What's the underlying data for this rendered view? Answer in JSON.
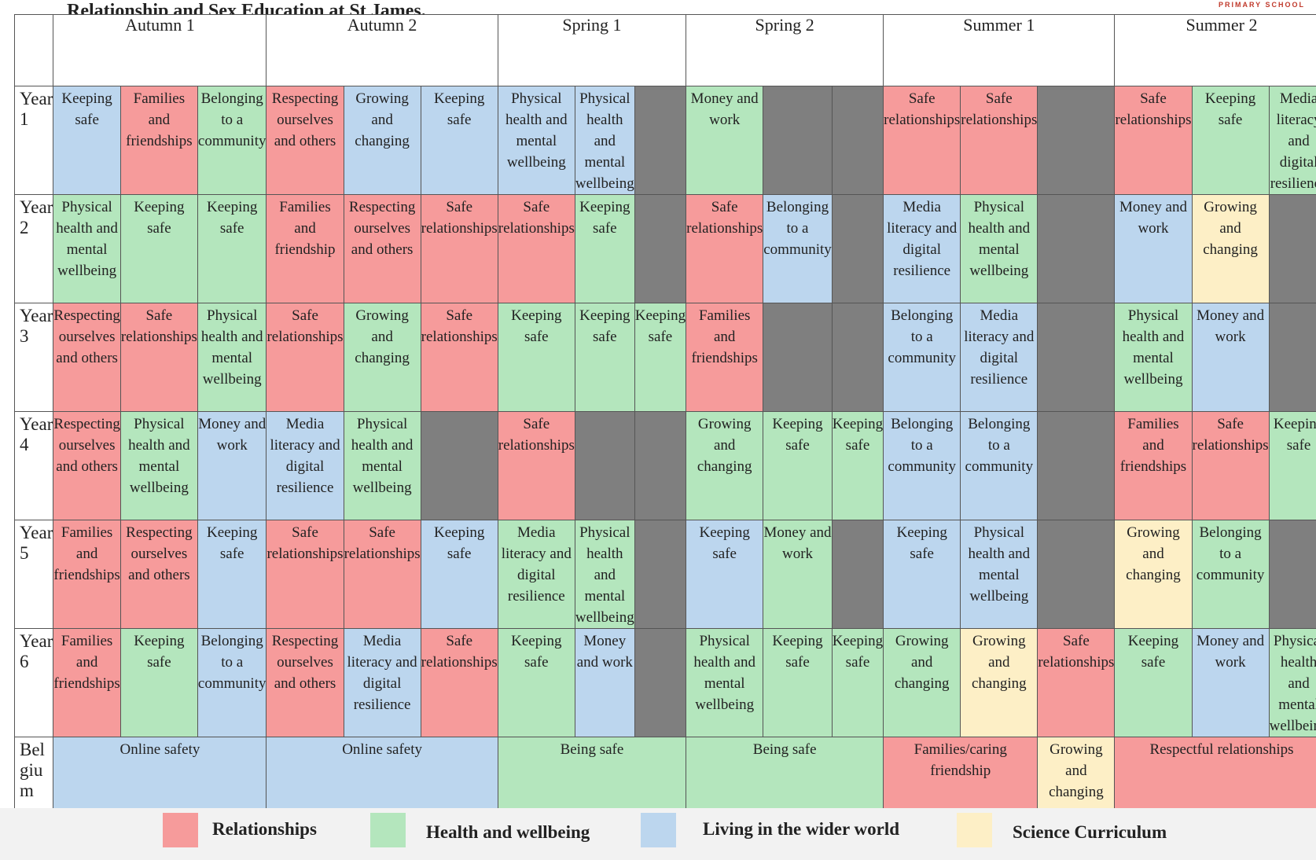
{
  "title": "Relationship and Sex Education at St James.",
  "brand": "PRIMARY SCHOOL",
  "terms": [
    "Autumn 1",
    "Autumn 2",
    "Spring 1",
    "Spring 2",
    "Summer 1",
    "Summer 2"
  ],
  "colors": {
    "relationships": "#f69b9b",
    "health": "#b4e6bd",
    "wider_world": "#bcd6ee",
    "science": "#fdefc6",
    "blank": "#7f7f7f"
  },
  "years": [
    {
      "label": "Year 1",
      "cells": [
        {
          "text": "Keeping safe",
          "cat": "L"
        },
        {
          "text": "Families and friendships",
          "cat": "R"
        },
        {
          "text": "Belonging to a community",
          "cat": "H"
        },
        {
          "text": "Respecting ourselves and others",
          "cat": "R"
        },
        {
          "text": "Growing and changing",
          "cat": "L"
        },
        {
          "text": "Keeping safe",
          "cat": "L"
        },
        {
          "text": "Physical health and mental wellbeing",
          "cat": "L"
        },
        {
          "text": "Physical health and mental wellbeing",
          "cat": "L"
        },
        {
          "text": "",
          "cat": "G"
        },
        {
          "text": "Money and work",
          "cat": "H"
        },
        {
          "text": "",
          "cat": "G"
        },
        {
          "text": "",
          "cat": "G"
        },
        {
          "text": "Safe relationships",
          "cat": "R"
        },
        {
          "text": "Safe relationships",
          "cat": "R"
        },
        {
          "text": "",
          "cat": "G"
        },
        {
          "text": "Safe relationships",
          "cat": "R"
        },
        {
          "text": "Keeping safe",
          "cat": "H"
        },
        {
          "text": "Media literacy and digital resilience",
          "cat": "H"
        }
      ]
    },
    {
      "label": "Year 2",
      "cells": [
        {
          "text": "Physical health and mental wellbeing",
          "cat": "H"
        },
        {
          "text": "Keeping safe",
          "cat": "H"
        },
        {
          "text": "Keeping safe",
          "cat": "H"
        },
        {
          "text": "Families and friendship",
          "cat": "R"
        },
        {
          "text": "Respecting ourselves and others",
          "cat": "R"
        },
        {
          "text": "Safe relationships",
          "cat": "R"
        },
        {
          "text": "Safe relationships",
          "cat": "R"
        },
        {
          "text": "Keeping safe",
          "cat": "H"
        },
        {
          "text": "",
          "cat": "G"
        },
        {
          "text": "Safe relationships",
          "cat": "R"
        },
        {
          "text": "Belonging to a community",
          "cat": "L"
        },
        {
          "text": "",
          "cat": "G"
        },
        {
          "text": "Media literacy and digital resilience",
          "cat": "L"
        },
        {
          "text": "Physical health and mental wellbeing",
          "cat": "H"
        },
        {
          "text": "",
          "cat": "G"
        },
        {
          "text": "Money and work",
          "cat": "L"
        },
        {
          "text": "Growing and changing",
          "cat": "S"
        },
        {
          "text": "",
          "cat": "G"
        }
      ]
    },
    {
      "label": "Year 3",
      "cells": [
        {
          "text": "Respecting ourselves and others",
          "cat": "R"
        },
        {
          "text": "Safe relationships",
          "cat": "R"
        },
        {
          "text": "Physical health and mental wellbeing",
          "cat": "H"
        },
        {
          "text": "Safe relationships",
          "cat": "R"
        },
        {
          "text": "Growing and changing",
          "cat": "H"
        },
        {
          "text": "Safe relationships",
          "cat": "R"
        },
        {
          "text": "Keeping safe",
          "cat": "H"
        },
        {
          "text": "Keeping safe",
          "cat": "H"
        },
        {
          "text": "Keeping safe",
          "cat": "H"
        },
        {
          "text": "Families and friendships",
          "cat": "R"
        },
        {
          "text": "",
          "cat": "G"
        },
        {
          "text": "",
          "cat": "G"
        },
        {
          "text": "Belonging to a community",
          "cat": "L"
        },
        {
          "text": "Media literacy and digital resilience",
          "cat": "L"
        },
        {
          "text": "",
          "cat": "G"
        },
        {
          "text": "Physical health and mental wellbeing",
          "cat": "H"
        },
        {
          "text": "Money and work",
          "cat": "L"
        },
        {
          "text": "",
          "cat": "G"
        }
      ]
    },
    {
      "label": "Year 4",
      "cells": [
        {
          "text": "Respecting ourselves and others",
          "cat": "R"
        },
        {
          "text": "Physical health and mental wellbeing",
          "cat": "H"
        },
        {
          "text": "Money and work",
          "cat": "L"
        },
        {
          "text": "Media literacy and digital resilience",
          "cat": "L"
        },
        {
          "text": "Physical health and mental wellbeing",
          "cat": "H"
        },
        {
          "text": "",
          "cat": "G"
        },
        {
          "text": "Safe relationships",
          "cat": "R"
        },
        {
          "text": "",
          "cat": "G"
        },
        {
          "text": "",
          "cat": "G"
        },
        {
          "text": "Growing and changing",
          "cat": "H"
        },
        {
          "text": "Keeping safe",
          "cat": "H"
        },
        {
          "text": "Keeping safe",
          "cat": "H"
        },
        {
          "text": "Belonging to a community",
          "cat": "L"
        },
        {
          "text": "Belonging to a community",
          "cat": "L"
        },
        {
          "text": "",
          "cat": "G"
        },
        {
          "text": "Families and friendships",
          "cat": "R"
        },
        {
          "text": "Safe relationships",
          "cat": "R"
        },
        {
          "text": "Keeping safe",
          "cat": "H"
        }
      ]
    },
    {
      "label": "Year 5",
      "cells": [
        {
          "text": "Families and friendships",
          "cat": "R"
        },
        {
          "text": "Respecting ourselves and others",
          "cat": "R"
        },
        {
          "text": "Keeping safe",
          "cat": "L"
        },
        {
          "text": "Safe relationships",
          "cat": "R"
        },
        {
          "text": "Safe relationships",
          "cat": "R"
        },
        {
          "text": "Keeping safe",
          "cat": "L"
        },
        {
          "text": "Media literacy and digital resilience",
          "cat": "H"
        },
        {
          "text": "Physical health and mental wellbeing",
          "cat": "H"
        },
        {
          "text": "",
          "cat": "G"
        },
        {
          "text": "Keeping safe",
          "cat": "L"
        },
        {
          "text": "Money and work",
          "cat": "H"
        },
        {
          "text": "",
          "cat": "G"
        },
        {
          "text": "Keeping safe",
          "cat": "L"
        },
        {
          "text": "Physical health and mental wellbeing",
          "cat": "L"
        },
        {
          "text": "",
          "cat": "G"
        },
        {
          "text": "Growing and changing",
          "cat": "S"
        },
        {
          "text": "Belonging to a community",
          "cat": "H"
        },
        {
          "text": "",
          "cat": "G"
        }
      ]
    },
    {
      "label": "Year 6",
      "cells": [
        {
          "text": "Families and friendships",
          "cat": "R"
        },
        {
          "text": "Keeping safe",
          "cat": "H"
        },
        {
          "text": "Belonging to a community",
          "cat": "L"
        },
        {
          "text": "Respecting ourselves and others",
          "cat": "R"
        },
        {
          "text": "Media literacy and digital resilience",
          "cat": "L"
        },
        {
          "text": "Safe relationships",
          "cat": "R"
        },
        {
          "text": "Keeping safe",
          "cat": "H"
        },
        {
          "text": "Money and work",
          "cat": "L"
        },
        {
          "text": "",
          "cat": "G"
        },
        {
          "text": "Physical health and mental wellbeing",
          "cat": "H"
        },
        {
          "text": "Keeping safe",
          "cat": "H"
        },
        {
          "text": "Keeping safe",
          "cat": "H"
        },
        {
          "text": "Growing and changing",
          "cat": "H"
        },
        {
          "text": "Growing and changing",
          "cat": "S"
        },
        {
          "text": "Safe relationships",
          "cat": "R"
        },
        {
          "text": "Keeping safe",
          "cat": "H"
        },
        {
          "text": "Money and work",
          "cat": "L"
        },
        {
          "text": "Physical health and mental wellbeing",
          "cat": "H"
        }
      ]
    }
  ],
  "belgium": {
    "label": "Belgium",
    "cells": [
      {
        "text": "Online safety",
        "cat": "L",
        "span": 3
      },
      {
        "text": "Online safety",
        "cat": "L",
        "span": 3
      },
      {
        "text": "Being safe",
        "cat": "H",
        "span": 3
      },
      {
        "text": "Being safe",
        "cat": "H",
        "span": 3
      },
      {
        "text": "Families/caring friendship",
        "cat": "R",
        "span": 2
      },
      {
        "text": "Growing and changing",
        "cat": "S",
        "span": 1
      },
      {
        "text": "Respectful relationships",
        "cat": "R",
        "span": 3
      }
    ]
  },
  "legend": [
    {
      "label": "Relationships",
      "cat": "R"
    },
    {
      "label": "Health and wellbeing",
      "cat": "H"
    },
    {
      "label": "Living in the wider world",
      "cat": "L"
    },
    {
      "label": "Science Curriculum",
      "cat": "S"
    }
  ]
}
